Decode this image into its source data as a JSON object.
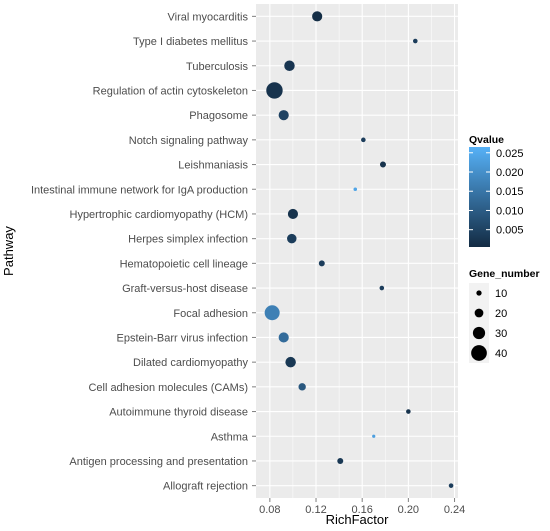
{
  "chart_data": {
    "type": "scatter",
    "xlabel": "RichFactor",
    "ylabel": "Pathway",
    "xlim": [
      0.068,
      0.243
    ],
    "xticks": [
      0.08,
      0.12,
      0.16,
      0.2,
      0.24
    ],
    "xtick_labels": [
      "0.08",
      "0.12",
      "0.16",
      "0.20",
      "0.24"
    ],
    "grid": true,
    "panel_background": "#ebebeb",
    "grid_color": "#ffffff",
    "points": [
      {
        "pathway": "Viral myocarditis",
        "rich_factor": 0.121,
        "qvalue": 0.001,
        "gene_number": 24
      },
      {
        "pathway": "Type I diabetes mellitus",
        "rich_factor": 0.206,
        "qvalue": 0.004,
        "gene_number": 8
      },
      {
        "pathway": "Tuberculosis",
        "rich_factor": 0.097,
        "qvalue": 0.0025,
        "gene_number": 25
      },
      {
        "pathway": "Regulation of actin cytoskeleton",
        "rich_factor": 0.084,
        "qvalue": 0.002,
        "gene_number": 42
      },
      {
        "pathway": "Phagosome",
        "rich_factor": 0.092,
        "qvalue": 0.005,
        "gene_number": 24
      },
      {
        "pathway": "Notch signaling pathway",
        "rich_factor": 0.161,
        "qvalue": 0.004,
        "gene_number": 8
      },
      {
        "pathway": "Leishmaniasis",
        "rich_factor": 0.178,
        "qvalue": 0.002,
        "gene_number": 12
      },
      {
        "pathway": "Intestinal immune network for IgA production",
        "rich_factor": 0.154,
        "qvalue": 0.024,
        "gene_number": 5
      },
      {
        "pathway": "Hypertrophic cardiomyopathy (HCM)",
        "rich_factor": 0.1,
        "qvalue": 0.002,
        "gene_number": 24
      },
      {
        "pathway": "Herpes simplex infection",
        "rich_factor": 0.099,
        "qvalue": 0.004,
        "gene_number": 22
      },
      {
        "pathway": "Hematopoietic cell lineage",
        "rich_factor": 0.125,
        "qvalue": 0.004,
        "gene_number": 12
      },
      {
        "pathway": "Graft-versus-host disease",
        "rich_factor": 0.177,
        "qvalue": 0.004,
        "gene_number": 8
      },
      {
        "pathway": "Focal adhesion",
        "rich_factor": 0.082,
        "qvalue": 0.017,
        "gene_number": 38
      },
      {
        "pathway": "Epstein-Barr virus infection",
        "rich_factor": 0.092,
        "qvalue": 0.013,
        "gene_number": 24
      },
      {
        "pathway": "Dilated cardiomyopathy",
        "rich_factor": 0.098,
        "qvalue": 0.003,
        "gene_number": 25
      },
      {
        "pathway": "Cell adhesion molecules (CAMs)",
        "rich_factor": 0.108,
        "qvalue": 0.009,
        "gene_number": 16
      },
      {
        "pathway": "Autoimmune thyroid disease",
        "rich_factor": 0.2,
        "qvalue": 0.002,
        "gene_number": 8
      },
      {
        "pathway": "Asthma",
        "rich_factor": 0.17,
        "qvalue": 0.023,
        "gene_number": 4
      },
      {
        "pathway": "Antigen processing and presentation",
        "rich_factor": 0.141,
        "qvalue": 0.003,
        "gene_number": 12
      },
      {
        "pathway": "Allograft rejection",
        "rich_factor": 0.237,
        "qvalue": 0.004,
        "gene_number": 8
      }
    ],
    "color_legend": {
      "title": "Qvalue",
      "ticks": [
        0.025,
        0.02,
        0.015,
        0.01,
        0.005
      ],
      "tick_labels": [
        "0.025",
        "0.020",
        "0.015",
        "0.010",
        "0.005"
      ],
      "range": [
        0.0005,
        0.0265
      ],
      "low_color": "#132b43",
      "high_color": "#56b1f7"
    },
    "size_legend": {
      "title": "Gene_number",
      "values": [
        10,
        20,
        30,
        40
      ],
      "labels": [
        "10",
        "20",
        "30",
        "40"
      ],
      "range": [
        4,
        42
      ]
    }
  }
}
